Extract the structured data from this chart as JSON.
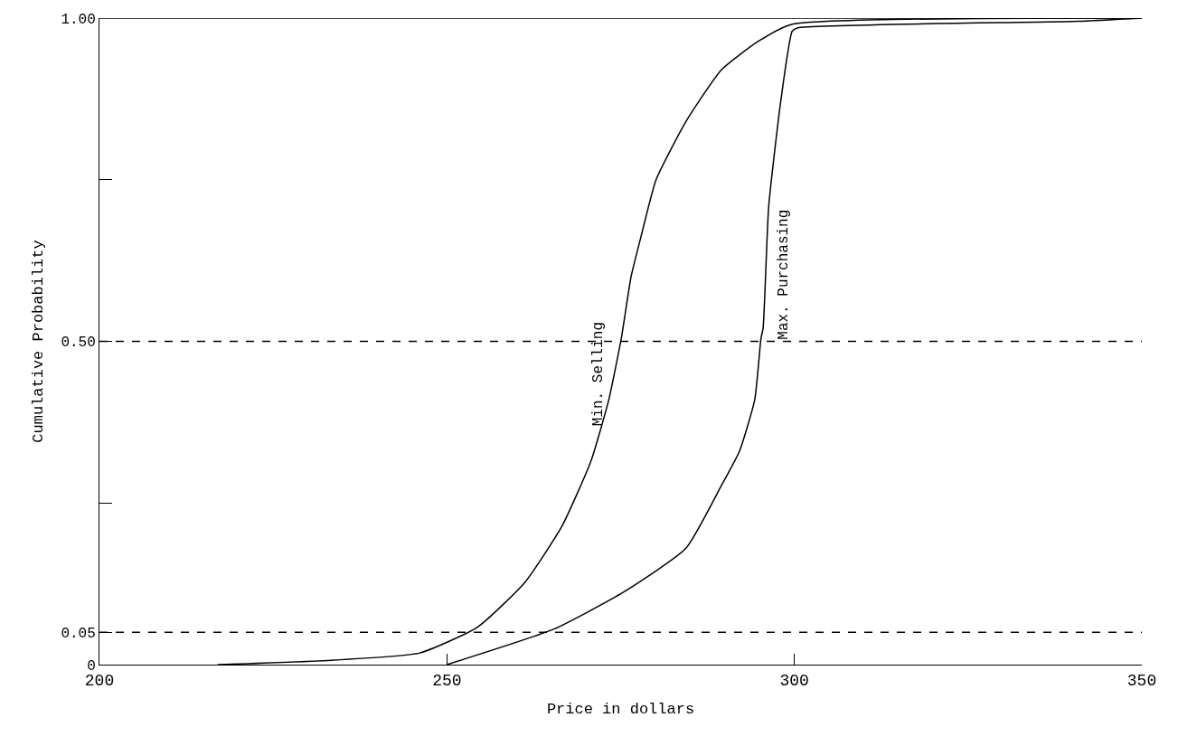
{
  "chart_data": {
    "type": "line",
    "xlabel": "Price in dollars",
    "ylabel": "Cumulative Probability",
    "xlim": [
      200,
      350
    ],
    "ylim": [
      0,
      1
    ],
    "xticks": [
      200,
      250,
      300,
      350
    ],
    "yticks": [
      {
        "value": 0,
        "label": "0"
      },
      {
        "value": 0.05,
        "label": "0.05"
      },
      {
        "value": 0.25,
        "label": null
      },
      {
        "value": 0.5,
        "label": "0.50"
      },
      {
        "value": 0.75,
        "label": null
      },
      {
        "value": 1,
        "label": "1.00"
      }
    ],
    "legend": false,
    "marker": "none",
    "line_style": "solid",
    "series": [
      {
        "name": "Min. Selling",
        "color": "#000000",
        "x": [
          217,
          232,
          246.1,
          254.4,
          261.2,
          266.5,
          270.7,
          273.3,
          275.1,
          276.5,
          278,
          280.1,
          284.4,
          289.5,
          294.8,
          299.5,
          347.6
        ],
        "values": [
          0,
          0.006,
          0.018,
          0.058,
          0.127,
          0.213,
          0.314,
          0.41,
          0.505,
          0.6,
          0.665,
          0.75,
          0.84,
          0.92,
          0.964,
          0.99,
          1.0
        ]
      },
      {
        "name": "Max. Purchasing",
        "color": "#000000",
        "x": [
          250,
          265.4,
          275.4,
          284.4,
          289.5,
          292.1,
          294.3,
          295.2,
          295.5,
          296.3,
          298,
          299.7,
          300.5,
          340.8,
          350
        ],
        "values": [
          0,
          0.055,
          0.112,
          0.18,
          0.277,
          0.33,
          0.41,
          0.505,
          0.52,
          0.708,
          0.868,
          0.98,
          0.985,
          0.995,
          1.0
        ]
      }
    ],
    "ref_lines": [
      {
        "axis": "y",
        "value": 0.05,
        "line_style": "dashed",
        "color": "#000000"
      },
      {
        "axis": "y",
        "value": 0.5,
        "line_style": "dashed",
        "color": "#000000"
      },
      {
        "axis": "y",
        "value": 1,
        "line_style": "solid",
        "color": "#000000"
      }
    ]
  }
}
